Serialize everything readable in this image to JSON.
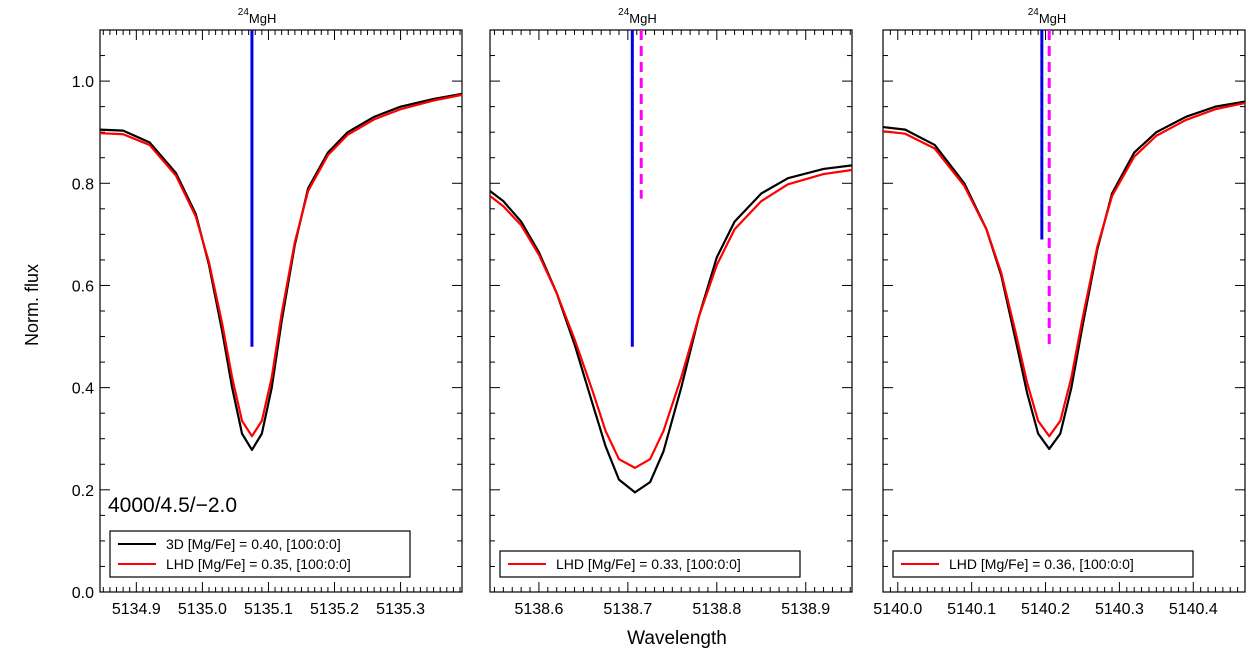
{
  "figure": {
    "xlabel": "Wavelength",
    "ylabel": "Norm. flux"
  },
  "chart_data": [
    {
      "type": "line",
      "title": "",
      "xlabel": "",
      "ylabel": "Norm. flux",
      "xlim": [
        5134.845,
        5135.393
      ],
      "ylim": [
        0.0,
        1.1
      ],
      "xticks": [
        "5134.9",
        "5135.0",
        "5135.1",
        "5135.2",
        "5135.3"
      ],
      "yticks": [
        "0.0",
        "0.2",
        "0.4",
        "0.6",
        "0.8",
        "1.0"
      ],
      "annotation": "4000/4.5/−2.0",
      "line_marker": {
        "label": "24",
        "species": "MgH",
        "solid_x": 5135.075,
        "solid_ybottom": 0.48
      },
      "dashed_marker": null,
      "series": [
        {
          "name": "3D [Mg/Fe] = 0.40, [100:0:0]",
          "color": "#000000",
          "x": [
            5134.845,
            5134.88,
            5134.92,
            5134.96,
            5134.99,
            5135.01,
            5135.03,
            5135.045,
            5135.06,
            5135.075,
            5135.09,
            5135.105,
            5135.12,
            5135.14,
            5135.16,
            5135.19,
            5135.22,
            5135.26,
            5135.3,
            5135.35,
            5135.393
          ],
          "y": [
            0.905,
            0.903,
            0.88,
            0.82,
            0.74,
            0.64,
            0.51,
            0.4,
            0.31,
            0.278,
            0.31,
            0.4,
            0.53,
            0.68,
            0.79,
            0.86,
            0.9,
            0.93,
            0.95,
            0.965,
            0.975
          ]
        },
        {
          "name": "LHD [Mg/Fe] = 0.35, [100:0:0]",
          "color": "#ff0000",
          "x": [
            5134.845,
            5134.88,
            5134.92,
            5134.96,
            5134.99,
            5135.01,
            5135.03,
            5135.045,
            5135.06,
            5135.075,
            5135.09,
            5135.105,
            5135.12,
            5135.14,
            5135.16,
            5135.19,
            5135.22,
            5135.26,
            5135.3,
            5135.35,
            5135.393
          ],
          "y": [
            0.898,
            0.896,
            0.875,
            0.815,
            0.735,
            0.645,
            0.525,
            0.42,
            0.335,
            0.305,
            0.335,
            0.42,
            0.545,
            0.685,
            0.785,
            0.855,
            0.895,
            0.925,
            0.945,
            0.962,
            0.973
          ]
        }
      ],
      "legend": [
        "3D [Mg/Fe] = 0.40, [100:0:0]",
        "LHD [Mg/Fe] = 0.35, [100:0:0]"
      ]
    },
    {
      "type": "line",
      "title": "",
      "xlabel": "",
      "ylabel": "",
      "xlim": [
        5138.545,
        5138.952
      ],
      "ylim": [
        0.0,
        1.1
      ],
      "xticks": [
        "5138.6",
        "5138.7",
        "5138.8",
        "5138.9"
      ],
      "yticks": [],
      "annotation": "",
      "line_marker": {
        "label": "24",
        "species": "MgH",
        "solid_x": 5138.705,
        "solid_ybottom": 0.48
      },
      "dashed_marker": {
        "x": 5138.715,
        "ybottom": 0.77
      },
      "series": [
        {
          "name": "3D",
          "color": "#000000",
          "x": [
            5138.545,
            5138.56,
            5138.58,
            5138.6,
            5138.62,
            5138.64,
            5138.66,
            5138.675,
            5138.69,
            5138.708,
            5138.725,
            5138.74,
            5138.76,
            5138.78,
            5138.8,
            5138.82,
            5138.85,
            5138.88,
            5138.92,
            5138.952
          ],
          "y": [
            0.785,
            0.765,
            0.725,
            0.665,
            0.585,
            0.485,
            0.37,
            0.285,
            0.22,
            0.195,
            0.215,
            0.275,
            0.4,
            0.54,
            0.655,
            0.725,
            0.78,
            0.81,
            0.828,
            0.835
          ]
        },
        {
          "name": "LHD [Mg/Fe] = 0.33, [100:0:0]",
          "color": "#ff0000",
          "x": [
            5138.545,
            5138.56,
            5138.58,
            5138.6,
            5138.62,
            5138.64,
            5138.66,
            5138.675,
            5138.69,
            5138.708,
            5138.725,
            5138.74,
            5138.76,
            5138.78,
            5138.8,
            5138.82,
            5138.85,
            5138.88,
            5138.92,
            5138.952
          ],
          "y": [
            0.775,
            0.755,
            0.718,
            0.66,
            0.585,
            0.495,
            0.395,
            0.315,
            0.26,
            0.243,
            0.26,
            0.315,
            0.42,
            0.54,
            0.64,
            0.71,
            0.765,
            0.798,
            0.818,
            0.826
          ]
        }
      ],
      "legend": [
        "LHD [Mg/Fe] = 0.33, [100:0:0]"
      ]
    },
    {
      "type": "line",
      "title": "",
      "xlabel": "",
      "ylabel": "",
      "xlim": [
        5139.98,
        5140.47
      ],
      "ylim": [
        0.0,
        1.1
      ],
      "xticks": [
        "5140.0",
        "5140.1",
        "5140.2",
        "5140.3",
        "5140.4"
      ],
      "yticks": [],
      "annotation": "",
      "line_marker": {
        "label": "24",
        "species": "MgH",
        "solid_x": 5140.195,
        "solid_ybottom": 0.69
      },
      "dashed_marker": {
        "x": 5140.205,
        "ybottom": 0.475
      },
      "series": [
        {
          "name": "3D",
          "color": "#000000",
          "x": [
            5139.98,
            5140.01,
            5140.05,
            5140.09,
            5140.12,
            5140.14,
            5140.16,
            5140.175,
            5140.19,
            5140.205,
            5140.22,
            5140.235,
            5140.25,
            5140.27,
            5140.29,
            5140.32,
            5140.35,
            5140.39,
            5140.43,
            5140.47
          ],
          "y": [
            0.91,
            0.905,
            0.875,
            0.8,
            0.71,
            0.62,
            0.49,
            0.39,
            0.31,
            0.28,
            0.31,
            0.4,
            0.52,
            0.67,
            0.78,
            0.86,
            0.9,
            0.93,
            0.95,
            0.96
          ]
        },
        {
          "name": "LHD [Mg/Fe] = 0.36, [100:0:0]",
          "color": "#ff0000",
          "x": [
            5139.98,
            5140.01,
            5140.05,
            5140.09,
            5140.12,
            5140.14,
            5140.16,
            5140.175,
            5140.19,
            5140.205,
            5140.22,
            5140.235,
            5140.25,
            5140.27,
            5140.29,
            5140.32,
            5140.35,
            5140.39,
            5140.43,
            5140.47
          ],
          "y": [
            0.902,
            0.897,
            0.868,
            0.795,
            0.71,
            0.625,
            0.505,
            0.41,
            0.335,
            0.305,
            0.335,
            0.42,
            0.535,
            0.675,
            0.775,
            0.852,
            0.893,
            0.924,
            0.945,
            0.957
          ]
        }
      ],
      "legend": [
        "LHD [Mg/Fe] = 0.36, [100:0:0]"
      ]
    }
  ]
}
